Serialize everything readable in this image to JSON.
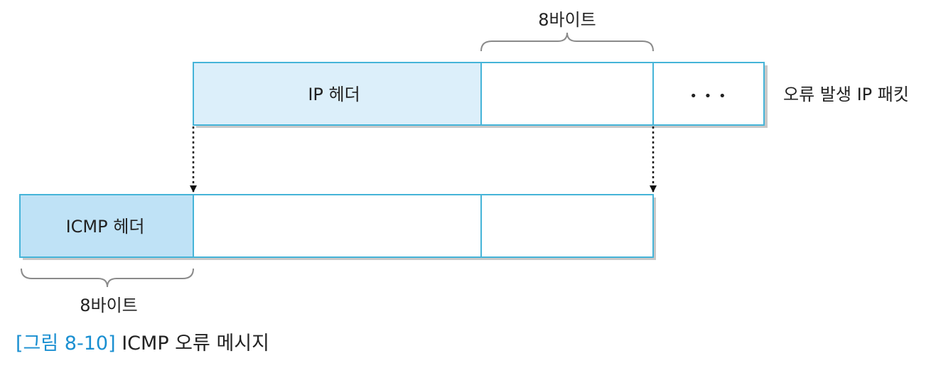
{
  "diagram": {
    "top_brace_label": "8바이트",
    "bottom_brace_label": "8바이트",
    "ip_header_label": "IP 헤더",
    "ellipsis": "• • •",
    "packet_label": "오류 발생 IP 패킷",
    "icmp_header_label": "ICMP 헤더",
    "colors": {
      "header_fill_light": "#dceffa",
      "header_fill_dark": "#bfe2f6",
      "box_border": "#45b4d8",
      "shadow": "#c8c8c8",
      "brace": "#8a8a8a",
      "arrow": "#111111"
    }
  },
  "caption": {
    "number": "[그림 8-10]",
    "title": "ICMP 오류 메시지",
    "number_color": "#1a8fd1"
  }
}
